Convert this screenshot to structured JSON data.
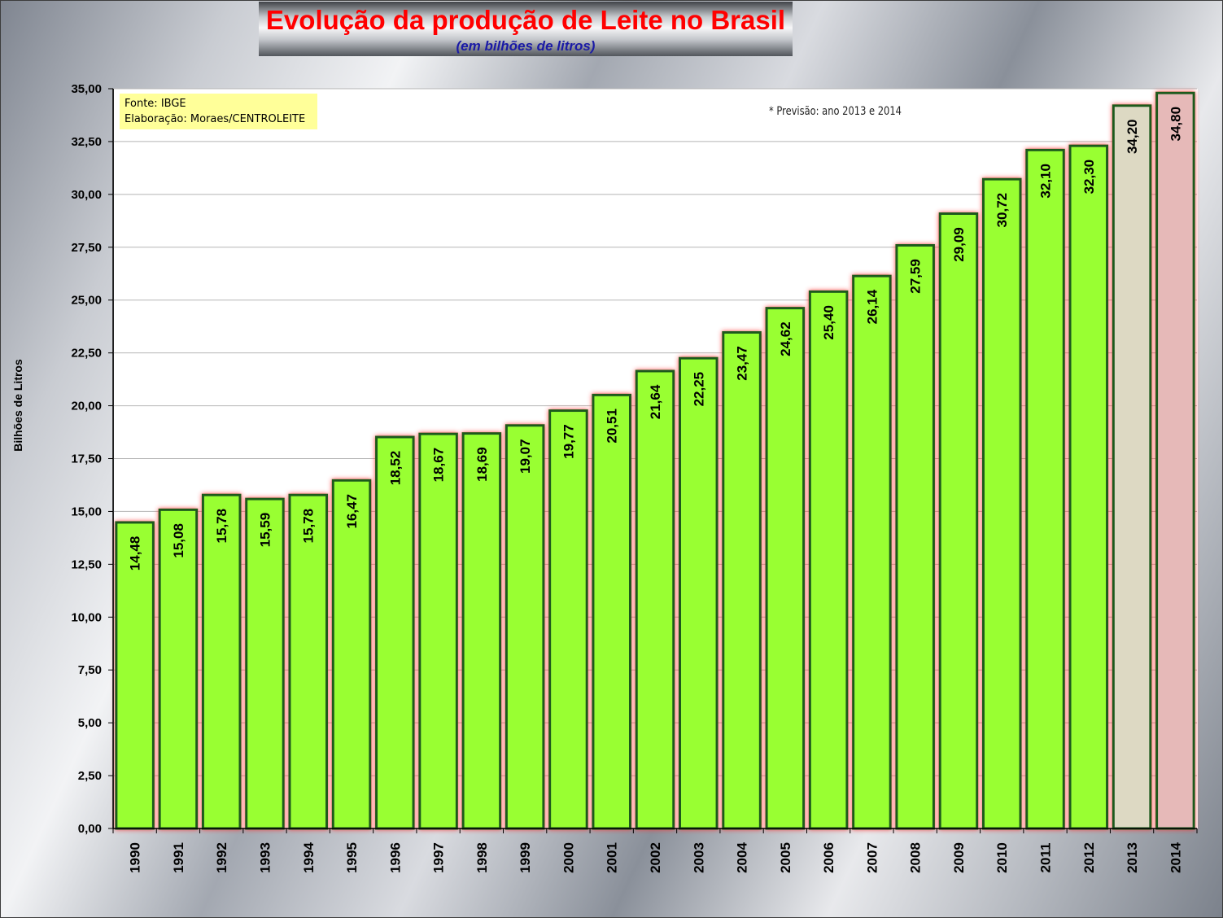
{
  "colors": {
    "bar": "#99ff33",
    "bar_2013": "#ddd9c3",
    "bar_2014": "#e6b9b8",
    "bar_border": "#1e5a1e",
    "bar_glow": "#ff3333",
    "title": "#ff0000",
    "subtitle": "#1a1aa6",
    "source_box": "#ffff99"
  },
  "annotations": {
    "source_line1": "Fonte: IBGE",
    "source_line2": "Elaboração: Moraes/CENTROLEITE",
    "forecast_note": "* Previsão: ano 2013 e 2014"
  },
  "chart_data": {
    "type": "bar",
    "title": "Evolução da produção de Leite no Brasil",
    "subtitle": "(em bilhões de litros)",
    "xlabel": "",
    "ylabel": "Bilhões de Litros",
    "ylim": [
      0,
      35
    ],
    "yticks": [
      "0,00",
      "2,50",
      "5,00",
      "7,50",
      "10,00",
      "12,50",
      "15,00",
      "17,50",
      "20,00",
      "22,50",
      "25,00",
      "27,50",
      "30,00",
      "32,50",
      "35,00"
    ],
    "grid": true,
    "categories": [
      "1990",
      "1991",
      "1992",
      "1993",
      "1994",
      "1995",
      "1996",
      "1997",
      "1998",
      "1999",
      "2000",
      "2001",
      "2002",
      "2003",
      "2004",
      "2005",
      "2006",
      "2007",
      "2008",
      "2009",
      "2010",
      "2011",
      "2012",
      "2013",
      "2014"
    ],
    "values": [
      14.48,
      15.08,
      15.78,
      15.59,
      15.78,
      16.47,
      18.52,
      18.67,
      18.69,
      19.07,
      19.77,
      20.51,
      21.64,
      22.25,
      23.47,
      24.62,
      25.4,
      26.14,
      27.59,
      29.09,
      30.72,
      32.1,
      32.3,
      34.2,
      34.8
    ],
    "value_labels": [
      "14,48",
      "15,08",
      "15,78",
      "15,59",
      "15,78",
      "16,47",
      "18,52",
      "18,67",
      "18,69",
      "19,07",
      "19,77",
      "20,51",
      "21,64",
      "22,25",
      "23,47",
      "24,62",
      "25,40",
      "26,14",
      "27,59",
      "29,09",
      "30,72",
      "32,10",
      "32,30",
      "34,20",
      "34,80"
    ]
  }
}
